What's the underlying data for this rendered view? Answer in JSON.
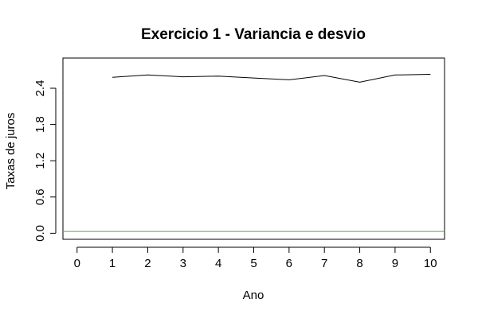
{
  "chart_data": {
    "type": "line",
    "title": "Exercicio 1 - Variancia e desvio",
    "xlabel": "Ano",
    "ylabel": "Taxas de juros",
    "xlim": [
      -0.4,
      10.4
    ],
    "ylim": [
      -0.1,
      2.9
    ],
    "x_ticks": [
      "0",
      "1",
      "2",
      "3",
      "4",
      "5",
      "6",
      "7",
      "8",
      "9",
      "10"
    ],
    "y_ticks": [
      "0.0",
      "0.6",
      "1.2",
      "1.8",
      "2.4"
    ],
    "grid": false,
    "series": [
      {
        "color": "#000000",
        "x": [
          1,
          2,
          3,
          4,
          5,
          6,
          7,
          8,
          9,
          10
        ],
        "y": [
          2.58,
          2.62,
          2.59,
          2.6,
          2.57,
          2.54,
          2.61,
          2.5,
          2.62,
          2.63
        ]
      },
      {
        "color": "#4CAF50",
        "x": [
          -0.4,
          10.4
        ],
        "y": [
          0.03,
          0.03
        ]
      }
    ]
  }
}
